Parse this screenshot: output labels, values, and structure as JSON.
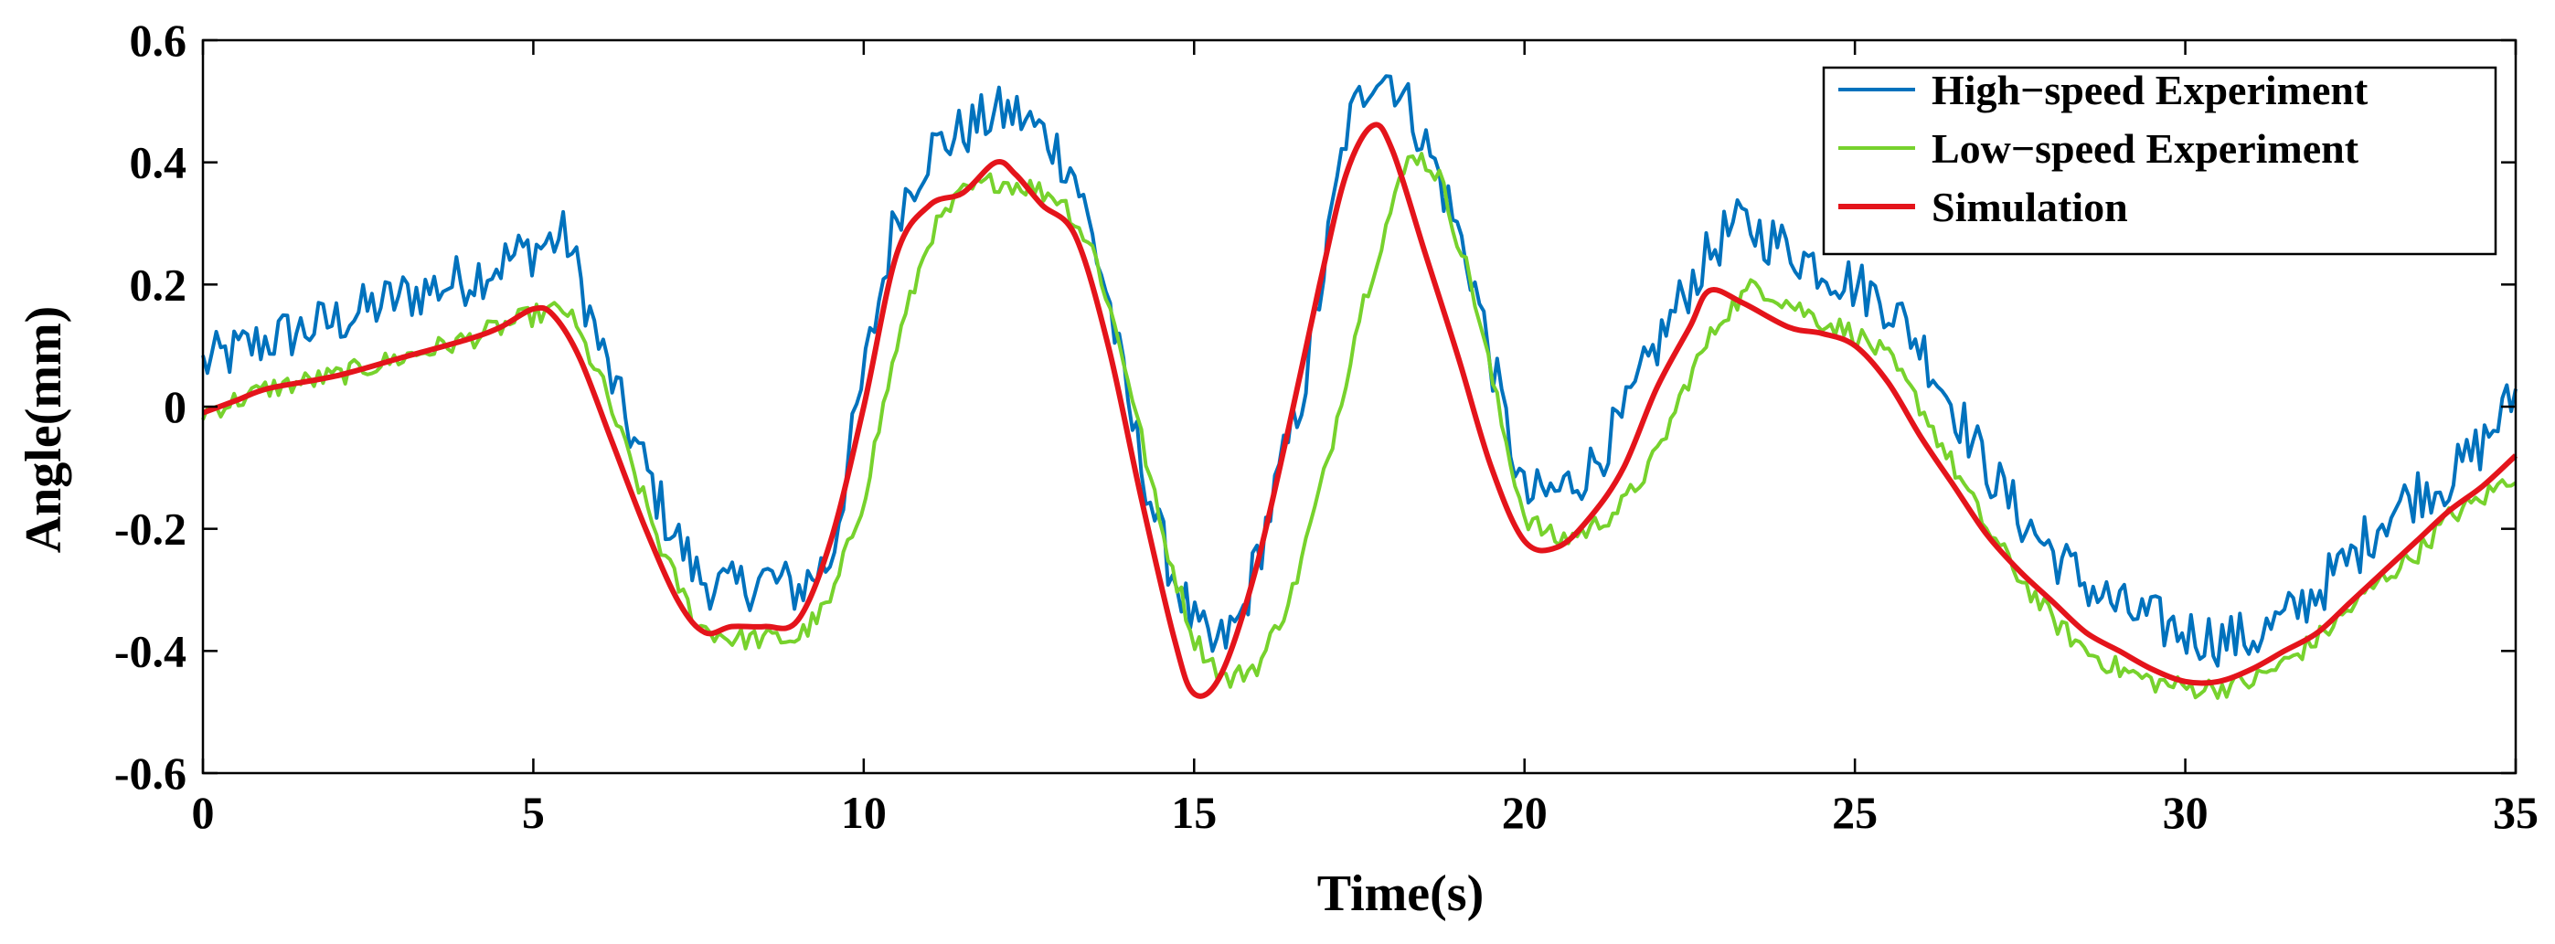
{
  "chart_data": {
    "type": "line",
    "title": "",
    "xlabel": "Time(s)",
    "ylabel": "Angle(mm)",
    "xlim": [
      0,
      35
    ],
    "ylim": [
      -0.6,
      0.6
    ],
    "xticks": [
      0,
      5,
      10,
      15,
      20,
      25,
      30,
      35
    ],
    "yticks": [
      -0.6,
      -0.4,
      -0.2,
      0,
      0.2,
      0.4,
      0.6
    ],
    "xtick_labels": [
      "0",
      "5",
      "10",
      "15",
      "20",
      "25",
      "30",
      "35"
    ],
    "ytick_labels": [
      "-0.6",
      "-0.4",
      "-0.2",
      "0",
      "0.2",
      "0.4",
      "0.6"
    ],
    "grid": false,
    "legend_position": "top-right",
    "series": [
      {
        "name": "High−speed Experiment",
        "color": "#0072BD",
        "noise": 0.045,
        "x": [
          0,
          1,
          2,
          3,
          4,
          4.8,
          5.5,
          6,
          6.5,
          7,
          7.5,
          8,
          8.5,
          9,
          9.5,
          10,
          10.5,
          11,
          11.5,
          12,
          12.3,
          12.8,
          13.2,
          13.7,
          14,
          14.5,
          15,
          15.3,
          15.7,
          16.2,
          16.7,
          17,
          17.3,
          17.7,
          18,
          18.3,
          18.7,
          19.2,
          19.7,
          20,
          20.5,
          21,
          21.5,
          22,
          22.5,
          23,
          23.3,
          23.8,
          24.3,
          25,
          25.5,
          26,
          26.5,
          27,
          27.5,
          28,
          28.5,
          29,
          29.5,
          30,
          30.5,
          31,
          31.5,
          32,
          32.5,
          33,
          33.5,
          34,
          34.5,
          35
        ],
        "y": [
          0.07,
          0.11,
          0.14,
          0.18,
          0.21,
          0.25,
          0.28,
          0.1,
          -0.05,
          -0.18,
          -0.28,
          -0.3,
          -0.28,
          -0.3,
          -0.25,
          0.05,
          0.32,
          0.42,
          0.45,
          0.48,
          0.48,
          0.44,
          0.38,
          0.18,
          0.0,
          -0.22,
          -0.36,
          -0.4,
          -0.35,
          -0.15,
          0.05,
          0.25,
          0.45,
          0.55,
          0.54,
          0.48,
          0.38,
          0.22,
          -0.02,
          -0.15,
          -0.14,
          -0.1,
          -0.02,
          0.1,
          0.2,
          0.28,
          0.3,
          0.27,
          0.24,
          0.2,
          0.17,
          0.1,
          0.0,
          -0.1,
          -0.18,
          -0.24,
          -0.29,
          -0.33,
          -0.35,
          -0.37,
          -0.38,
          -0.38,
          -0.35,
          -0.3,
          -0.25,
          -0.18,
          -0.14,
          -0.12,
          -0.06,
          0.02
        ]
      },
      {
        "name": "Low−speed Experiment",
        "color": "#77D22D",
        "noise": 0.018,
        "x": [
          0,
          1,
          2,
          3,
          4,
          5,
          5.5,
          6,
          6.5,
          7,
          7.5,
          8,
          8.5,
          9,
          9.5,
          10,
          10.5,
          11,
          11.5,
          12,
          12.5,
          13,
          13.5,
          14,
          14.5,
          15,
          15.5,
          16,
          16.5,
          17,
          17.5,
          18,
          18.3,
          18.7,
          19.2,
          19.7,
          20,
          20.5,
          21,
          21.5,
          22,
          22.5,
          23,
          23.5,
          24,
          24.5,
          25,
          25.5,
          26,
          26.5,
          27,
          27.5,
          28,
          28.5,
          29,
          29.5,
          30,
          30.5,
          31,
          31.5,
          32,
          32.5,
          33,
          33.5,
          34,
          34.5,
          35
        ],
        "y": [
          -0.01,
          0.03,
          0.05,
          0.08,
          0.11,
          0.15,
          0.16,
          0.05,
          -0.1,
          -0.25,
          -0.36,
          -0.38,
          -0.38,
          -0.38,
          -0.32,
          -0.15,
          0.1,
          0.28,
          0.35,
          0.37,
          0.36,
          0.34,
          0.25,
          0.05,
          -0.2,
          -0.38,
          -0.45,
          -0.42,
          -0.3,
          -0.1,
          0.15,
          0.33,
          0.42,
          0.38,
          0.2,
          -0.05,
          -0.18,
          -0.22,
          -0.2,
          -0.16,
          -0.08,
          0.05,
          0.15,
          0.2,
          0.17,
          0.14,
          0.12,
          0.08,
          0.0,
          -0.1,
          -0.2,
          -0.28,
          -0.35,
          -0.4,
          -0.43,
          -0.45,
          -0.46,
          -0.46,
          -0.45,
          -0.42,
          -0.38,
          -0.33,
          -0.28,
          -0.24,
          -0.18,
          -0.15,
          -0.11
        ]
      },
      {
        "name": "Simulation",
        "color": "#E4141B",
        "noise": 0,
        "x": [
          0,
          0.5,
          1,
          2,
          3,
          4,
          4.5,
          5,
          5.3,
          5.7,
          6.2,
          6.7,
          7.2,
          7.6,
          8,
          8.5,
          9,
          9.5,
          10,
          10.5,
          11,
          11.5,
          12,
          12.3,
          12.7,
          13.2,
          13.7,
          14.2,
          14.7,
          15,
          15.4,
          15.9,
          16.4,
          16.9,
          17.3,
          17.7,
          18,
          18.5,
          19,
          19.5,
          20,
          20.5,
          21,
          21.5,
          22,
          22.5,
          22.8,
          23.3,
          24,
          24.5,
          25,
          25.5,
          26,
          26.5,
          27,
          27.5,
          28,
          28.5,
          29,
          29.5,
          30,
          30.5,
          31,
          31.5,
          32,
          32.5,
          33,
          33.5,
          34,
          34.5,
          35
        ],
        "y": [
          -0.01,
          0.01,
          0.03,
          0.05,
          0.08,
          0.11,
          0.13,
          0.16,
          0.15,
          0.08,
          -0.06,
          -0.2,
          -0.32,
          -0.37,
          -0.36,
          -0.36,
          -0.35,
          -0.22,
          0.0,
          0.25,
          0.33,
          0.35,
          0.4,
          0.38,
          0.33,
          0.28,
          0.1,
          -0.15,
          -0.38,
          -0.47,
          -0.44,
          -0.28,
          -0.05,
          0.2,
          0.38,
          0.46,
          0.42,
          0.25,
          0.08,
          -0.1,
          -0.22,
          -0.23,
          -0.18,
          -0.1,
          0.03,
          0.13,
          0.19,
          0.17,
          0.13,
          0.12,
          0.1,
          0.04,
          -0.05,
          -0.13,
          -0.21,
          -0.27,
          -0.32,
          -0.37,
          -0.4,
          -0.43,
          -0.45,
          -0.45,
          -0.43,
          -0.4,
          -0.37,
          -0.32,
          -0.27,
          -0.22,
          -0.17,
          -0.13,
          -0.08
        ]
      }
    ]
  }
}
